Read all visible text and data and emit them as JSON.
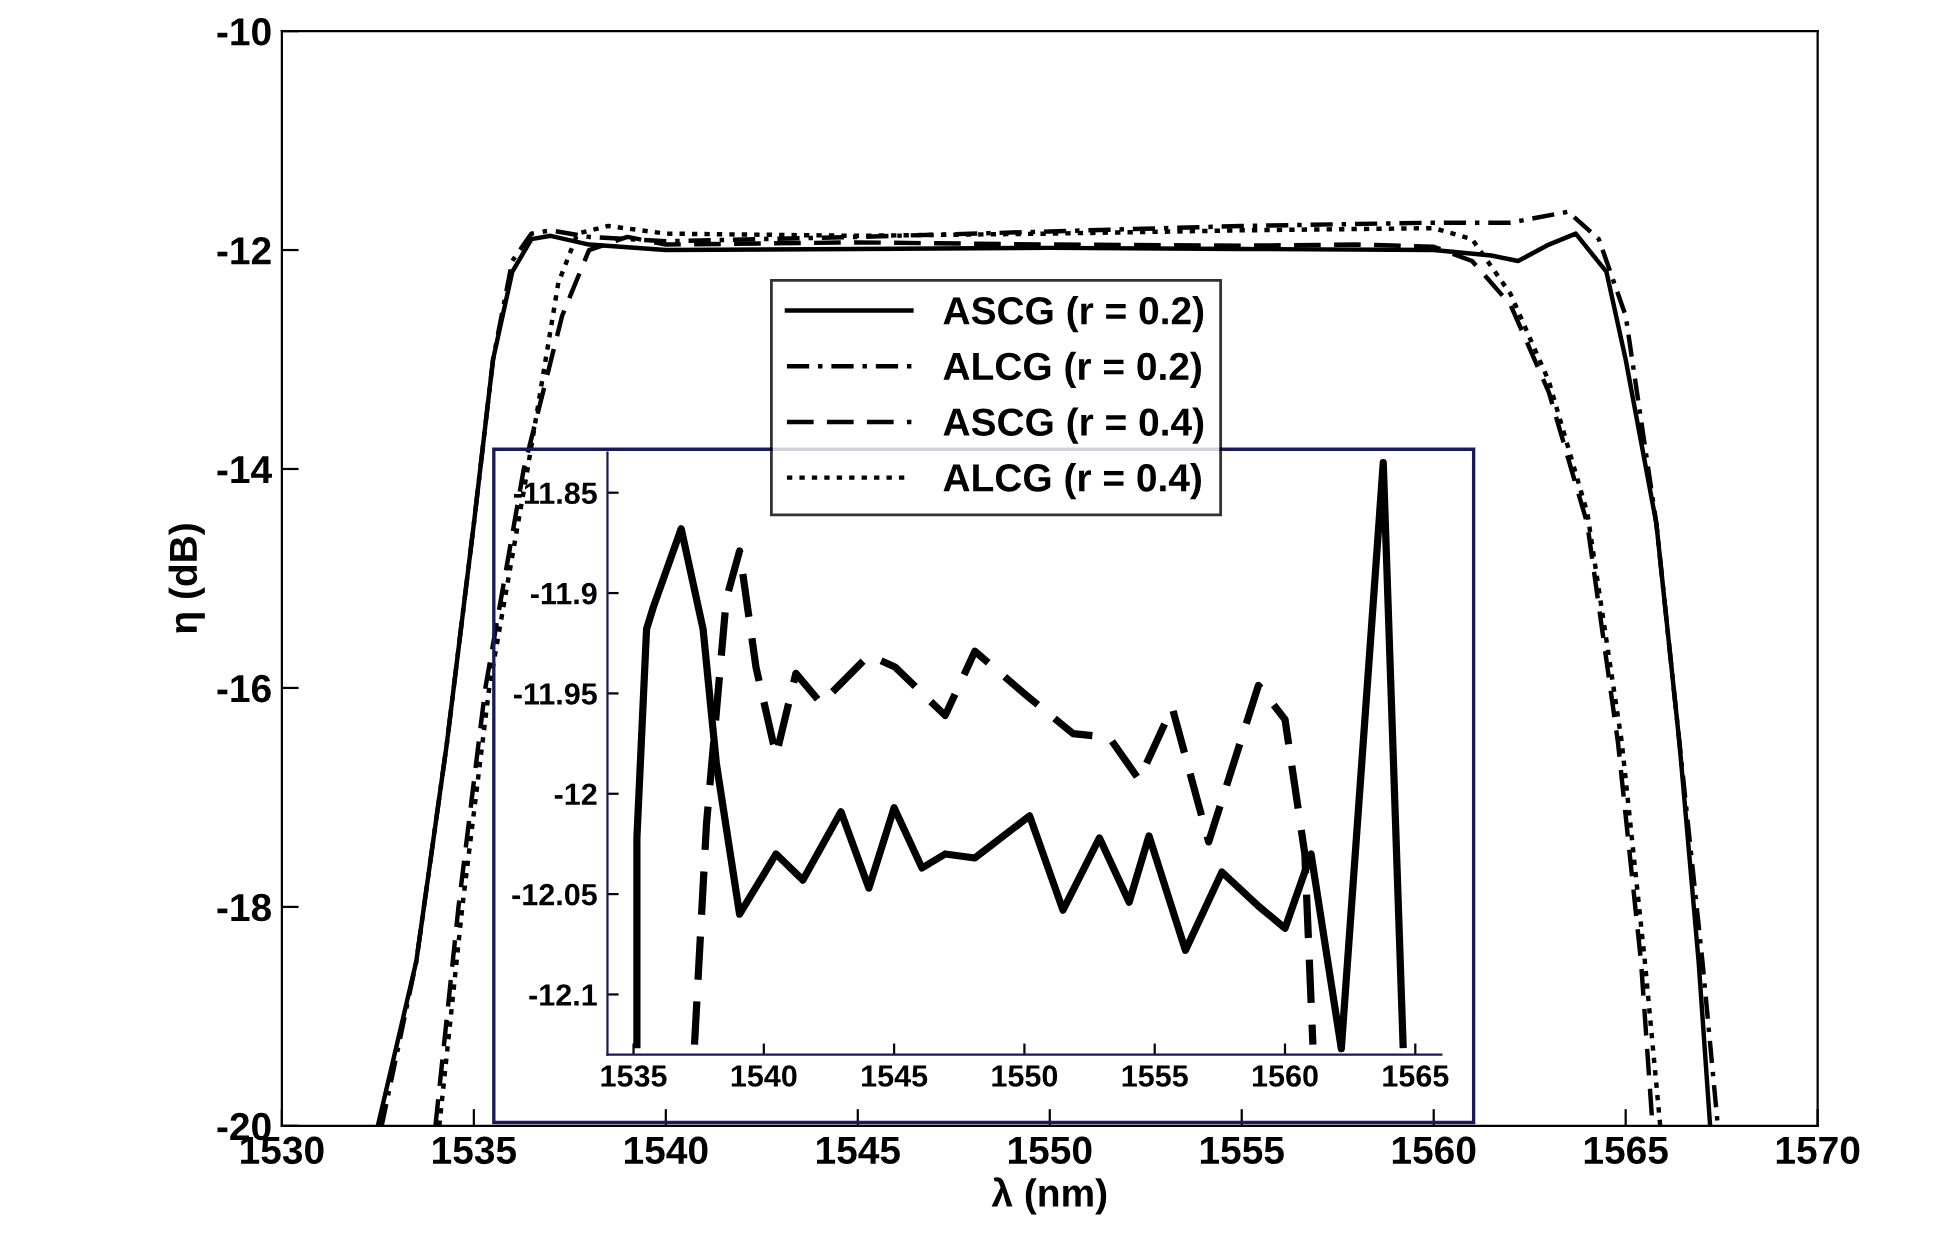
{
  "chart_data": [
    {
      "type": "line",
      "xlabel": "λ (nm)",
      "ylabel": "η (dB)",
      "xlim": [
        1530,
        1570
      ],
      "ylim": [
        -20,
        -10
      ],
      "xticks": [
        1530,
        1535,
        1540,
        1545,
        1550,
        1555,
        1560,
        1565,
        1570
      ],
      "yticks": [
        -20,
        -18,
        -16,
        -14,
        -12,
        -10
      ],
      "grid": false,
      "legend": "top",
      "marker": "none",
      "series": [
        {
          "name": "ASCG (r = 0.2)",
          "color": "#000000",
          "line_style": "solid",
          "x": [
            1532.5,
            1533.5,
            1534.3,
            1535,
            1535.5,
            1536,
            1536.5,
            1537,
            1538,
            1540,
            1545,
            1550,
            1555,
            1560,
            1561.5,
            1562.2,
            1563,
            1563.7,
            1564.5,
            1565,
            1565.8,
            1566.4,
            1566.9,
            1567.2
          ],
          "values": [
            -20,
            -18.5,
            -16.5,
            -14.5,
            -13,
            -12.2,
            -11.9,
            -11.87,
            -11.95,
            -12.0,
            -11.99,
            -11.98,
            -11.99,
            -12.0,
            -12.05,
            -12.1,
            -11.95,
            -11.85,
            -12.2,
            -13,
            -14.5,
            -16.5,
            -18.5,
            -20
          ]
        },
        {
          "name": "ALCG (r = 0.2)",
          "color": "#000000",
          "line_style": "dashdot",
          "x": [
            1532.6,
            1533.5,
            1534.3,
            1535,
            1535.5,
            1536,
            1536.5,
            1537,
            1538,
            1540,
            1545,
            1550,
            1555,
            1560,
            1562,
            1563.5,
            1564.3,
            1565,
            1565.8,
            1566.4,
            1567,
            1567.4
          ],
          "values": [
            -20,
            -18.5,
            -16.5,
            -14.5,
            -13,
            -12.1,
            -11.85,
            -11.82,
            -11.88,
            -11.92,
            -11.88,
            -11.83,
            -11.78,
            -11.75,
            -11.75,
            -11.65,
            -11.9,
            -12.6,
            -14.5,
            -16.5,
            -18.5,
            -20
          ]
        },
        {
          "name": "ASCG (r = 0.4)",
          "color": "#000000",
          "line_style": "dashed",
          "x": [
            1534,
            1534.6,
            1535.3,
            1536.3,
            1537.3,
            1538,
            1539,
            1540,
            1545,
            1550,
            1555,
            1558,
            1560,
            1561,
            1562,
            1563,
            1564,
            1564.8,
            1565.4,
            1565.7
          ],
          "values": [
            -20,
            -18,
            -16,
            -14,
            -12.6,
            -12.0,
            -11.88,
            -11.95,
            -11.93,
            -11.95,
            -11.96,
            -11.95,
            -11.97,
            -12.1,
            -12.5,
            -13.3,
            -14.5,
            -16.5,
            -18.5,
            -20
          ]
        },
        {
          "name": "ALCG (r = 0.4)",
          "color": "#000000",
          "line_style": "dotted",
          "x": [
            1534.1,
            1534.7,
            1535.4,
            1536.4,
            1537.2,
            1537.7,
            1538.5,
            1540,
            1545,
            1550,
            1555,
            1560,
            1561,
            1562,
            1563,
            1564,
            1564.9,
            1565.5,
            1565.9
          ],
          "values": [
            -20,
            -18,
            -16,
            -14,
            -12.3,
            -11.85,
            -11.78,
            -11.85,
            -11.87,
            -11.85,
            -11.82,
            -11.8,
            -11.9,
            -12.4,
            -13.2,
            -14.4,
            -16.5,
            -18.5,
            -20
          ]
        }
      ]
    },
    {
      "type": "line",
      "xlim": [
        1534,
        1566
      ],
      "ylim": [
        -12.13,
        -11.83
      ],
      "xticks": [
        1535,
        1540,
        1545,
        1550,
        1555,
        1560,
        1565
      ],
      "yticks": [
        -12.1,
        -12.05,
        -12,
        -11.95,
        -11.9,
        -11.85
      ],
      "grid": false,
      "legend": false,
      "marker": "none",
      "series": [
        {
          "color": "#000000",
          "line_style": "solid",
          "x": [
            1535.13,
            1535.13,
            1535.5,
            1535.76,
            1536.83,
            1537.67,
            1538.18,
            1539.07,
            1540.47,
            1541.5,
            1542.96,
            1544.03,
            1545.0,
            1546.07,
            1546.96,
            1548.1,
            1548.8,
            1550.2,
            1551.48,
            1552.88,
            1554.02,
            1554.78,
            1556.18,
            1557.58,
            1558.98,
            1560.0,
            1561.0,
            1562.16,
            1563.77,
            1564.53
          ],
          "values": [
            -12.125,
            -12.022,
            -11.918,
            -11.907,
            -11.868,
            -11.918,
            -11.985,
            -12.06,
            -12.03,
            -12.043,
            -12.009,
            -12.047,
            -12.007,
            -12.037,
            -12.03,
            -12.032,
            -12.025,
            -12.011,
            -12.058,
            -12.022,
            -12.054,
            -12.021,
            -12.078,
            -12.039,
            -12.056,
            -12.067,
            -12.03,
            -12.127,
            -11.835,
            -12.125
          ]
        },
        {
          "color": "#000000",
          "line_style": "dashed",
          "x": [
            1537.34,
            1537.8,
            1538.56,
            1539.07,
            1539.7,
            1540.47,
            1541.23,
            1542.2,
            1544.03,
            1545.05,
            1546.96,
            1548.1,
            1550.08,
            1551.86,
            1553.26,
            1554.4,
            1555.67,
            1557.07,
            1558.98,
            1560.0,
            1560.76,
            1561.07
          ],
          "values": [
            -12.125,
            -12.015,
            -11.903,
            -11.879,
            -11.937,
            -11.981,
            -11.94,
            -11.955,
            -11.931,
            -11.937,
            -11.961,
            -11.929,
            -11.951,
            -11.97,
            -11.972,
            -11.993,
            -11.957,
            -12.024,
            -11.946,
            -11.963,
            -12.03,
            -12.125
          ]
        }
      ]
    }
  ]
}
